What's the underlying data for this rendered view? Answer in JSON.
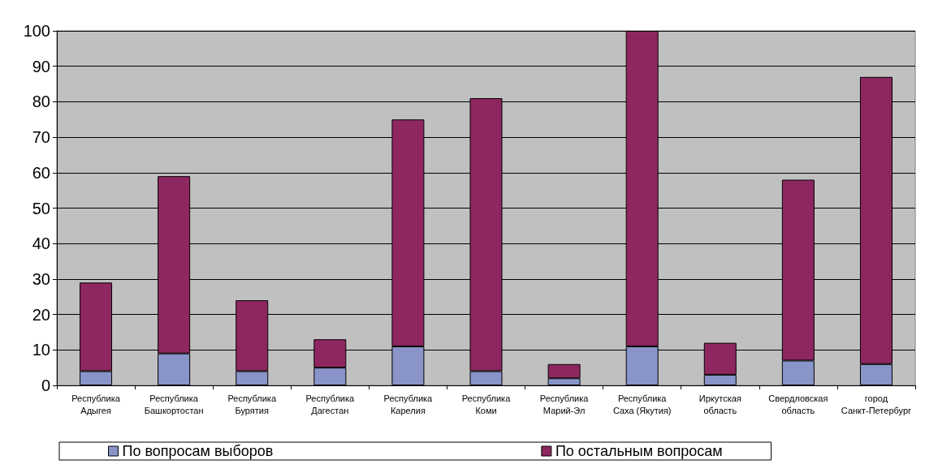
{
  "chart_data": {
    "type": "bar",
    "stacked": true,
    "categories": [
      "Республика Адыгея",
      "Республика Башкортостан",
      "Республика Бурятия",
      "Республика Дагестан",
      "Республика Карелия",
      "Республика Коми",
      "Республика Марий-Эл",
      "Республика Саха (Якутия)",
      "Иркутская область",
      "Свердловская область",
      "город Санкт-Петербург"
    ],
    "series": [
      {
        "name": "По вопросам выборов",
        "color": "#8994c9",
        "values": [
          4,
          9,
          4,
          5,
          11,
          4,
          2,
          11,
          3,
          7,
          6
        ]
      },
      {
        "name": "По остальным вопросам",
        "color": "#8e2760",
        "values": [
          25,
          50,
          20,
          8,
          64,
          77,
          4,
          89,
          9,
          51,
          81
        ]
      }
    ],
    "ylim": [
      0,
      100
    ],
    "yticks": [
      0,
      10,
      20,
      30,
      40,
      50,
      60,
      70,
      80,
      90,
      100
    ],
    "grid": "y",
    "legend": "bottom"
  }
}
